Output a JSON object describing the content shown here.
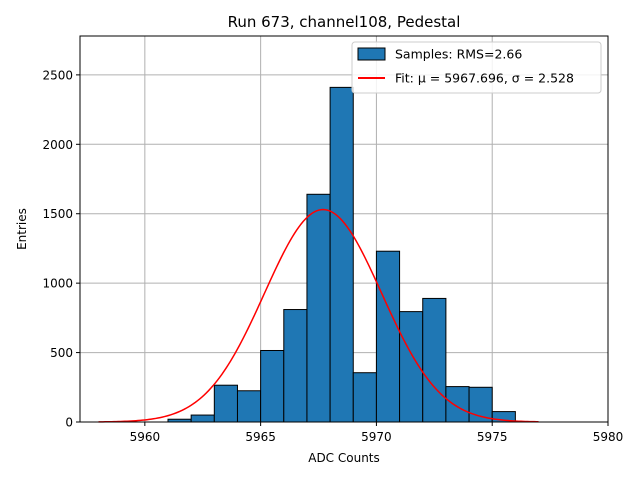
{
  "chart_data": {
    "type": "bar",
    "title": "Run 673, channel108, Pedestal",
    "xlabel": "ADC Counts",
    "ylabel": "Entries",
    "xlim": [
      5957.2,
      5980
    ],
    "ylim": [
      0,
      2780
    ],
    "grid": true,
    "legend_position": "top-right",
    "x_ticks": [
      5960,
      5965,
      5970,
      5975,
      5980
    ],
    "y_ticks": [
      0,
      500,
      1000,
      1500,
      2000,
      2500
    ],
    "bin_width": 1,
    "bins": [
      {
        "x": 5960,
        "value": 0
      },
      {
        "x": 5961,
        "value": 20
      },
      {
        "x": 5962,
        "value": 50
      },
      {
        "x": 5963,
        "value": 265
      },
      {
        "x": 5964,
        "value": 225
      },
      {
        "x": 5965,
        "value": 515
      },
      {
        "x": 5966,
        "value": 810
      },
      {
        "x": 5967,
        "value": 1640
      },
      {
        "x": 5968,
        "value": 2410
      },
      {
        "x": 5969,
        "value": 355
      },
      {
        "x": 5970,
        "value": 1230
      },
      {
        "x": 5971,
        "value": 795
      },
      {
        "x": 5972,
        "value": 890
      },
      {
        "x": 5973,
        "value": 255
      },
      {
        "x": 5974,
        "value": 250
      },
      {
        "x": 5975,
        "value": 75
      }
    ],
    "fit": {
      "mu": 5967.696,
      "sigma": 2.528,
      "amplitude": 1530,
      "x_range": [
        5958,
        5977
      ]
    },
    "series_colors": {
      "bars": "#1f77b4",
      "bar_edge": "#000000",
      "fit": "#ff0000",
      "grid": "#b0b0b0"
    },
    "legend": [
      {
        "key": "samples",
        "label": "Samples: RMS=2.66"
      },
      {
        "key": "fit",
        "label": "Fit: μ = 5967.696, σ = 2.528"
      }
    ]
  }
}
